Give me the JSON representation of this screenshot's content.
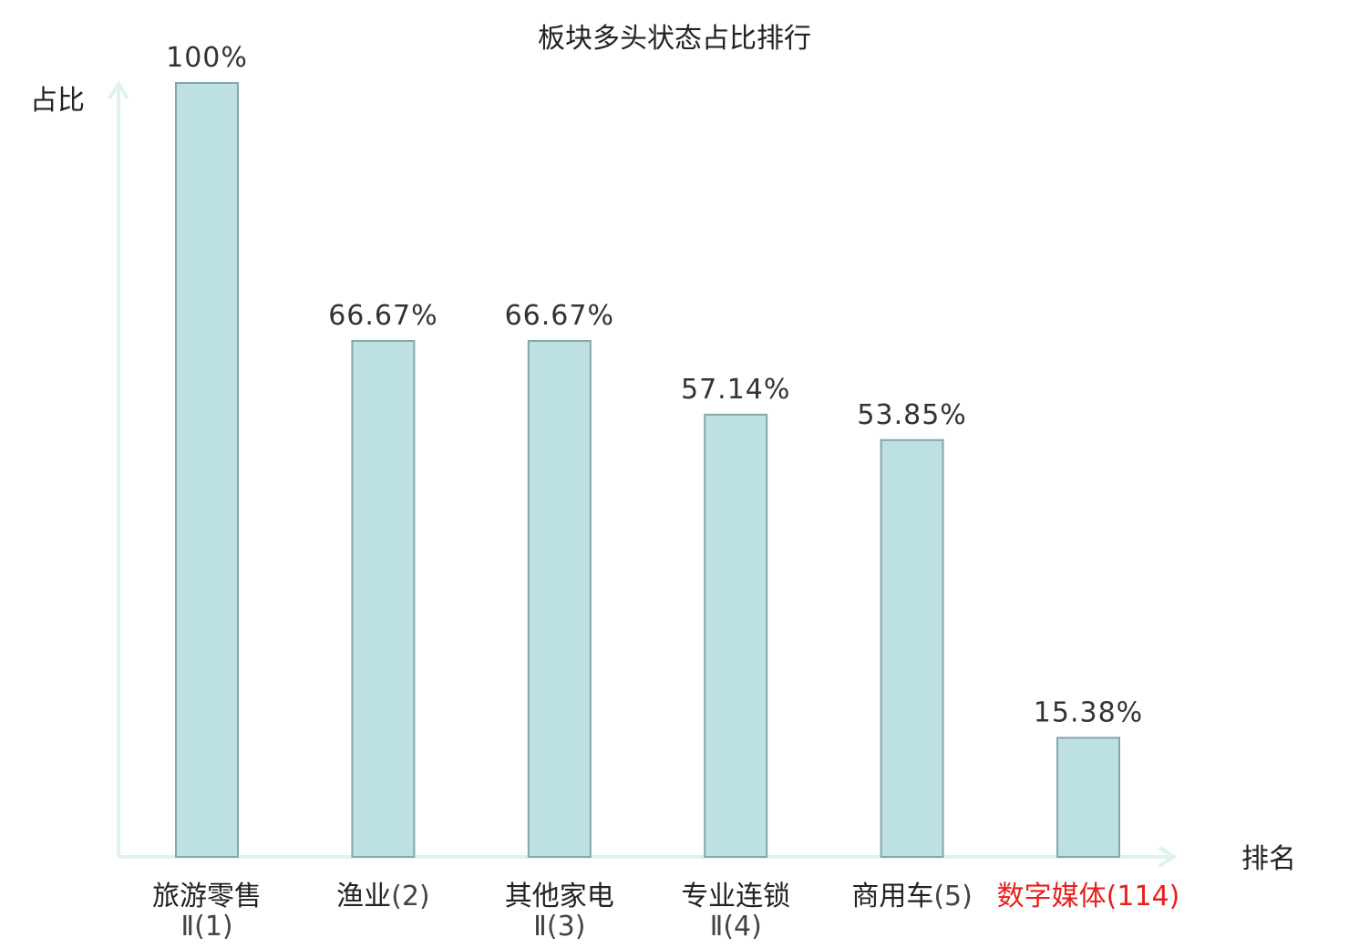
{
  "chart_data": {
    "type": "bar",
    "title": "板块多头状态占比排行",
    "ylabel": "占比",
    "xlabel": "排名",
    "ylim": [
      0,
      100
    ],
    "grid": false,
    "categories": [
      {
        "name": "旅游零售",
        "rank": "Ⅱ(1)",
        "value": 100,
        "label": "100%",
        "highlight": false
      },
      {
        "name": "渔业",
        "rank": "(2)",
        "value": 66.67,
        "label": "66.67%",
        "highlight": false
      },
      {
        "name": "其他家电",
        "rank": "Ⅱ(3)",
        "value": 66.67,
        "label": "66.67%",
        "highlight": false
      },
      {
        "name": "专业连锁",
        "rank": "Ⅱ(4)",
        "value": 57.14,
        "label": "57.14%",
        "highlight": false
      },
      {
        "name": "商用车",
        "rank": "(5)",
        "value": 53.85,
        "label": "53.85%",
        "highlight": false
      },
      {
        "name": "数字媒体",
        "rank": "(114)",
        "value": 15.38,
        "label": "15.38%",
        "highlight": true
      }
    ],
    "colors": {
      "bar_fill": "#bde0e3",
      "bar_stroke": "#86a6aa",
      "axis": "#dff2ef",
      "highlight_text": "#e8201c",
      "text": "#222222"
    }
  }
}
